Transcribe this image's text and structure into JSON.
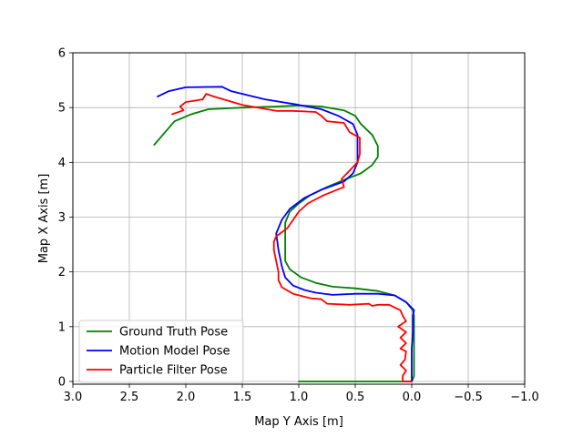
{
  "chart_data": {
    "type": "line",
    "xlabel": "Map Y Axis [m]",
    "ylabel": "Map X Axis [m]",
    "xlim": [
      3.0,
      -1.0
    ],
    "ylim": [
      -0.05,
      6.0
    ],
    "x_ticks": [
      3.0,
      2.5,
      2.0,
      1.5,
      1.0,
      0.5,
      0.0,
      -0.5,
      -1.0
    ],
    "x_tick_labels": [
      "3.0",
      "2.5",
      "2.0",
      "1.5",
      "1.0",
      "0.5",
      "0.0",
      "−0.5",
      "−1.0"
    ],
    "y_ticks": [
      0,
      1,
      2,
      3,
      4,
      5,
      6
    ],
    "y_tick_labels": [
      "0",
      "1",
      "2",
      "3",
      "4",
      "5",
      "6"
    ],
    "grid": true,
    "legend_position": "lower-left",
    "series": [
      {
        "name": "Ground Truth Pose",
        "color": "#008000",
        "points": [
          [
            1.0,
            0.0
          ],
          [
            0.0,
            0.0
          ],
          [
            -0.02,
            0.1
          ],
          [
            -0.02,
            1.2
          ],
          [
            -0.01,
            1.3
          ],
          [
            0.05,
            1.45
          ],
          [
            0.15,
            1.57
          ],
          [
            0.3,
            1.65
          ],
          [
            0.5,
            1.7
          ],
          [
            0.7,
            1.73
          ],
          [
            0.85,
            1.8
          ],
          [
            0.98,
            1.9
          ],
          [
            1.08,
            2.05
          ],
          [
            1.12,
            2.2
          ],
          [
            1.12,
            2.5
          ],
          [
            1.12,
            2.9
          ],
          [
            1.08,
            3.1
          ],
          [
            1.0,
            3.25
          ],
          [
            0.9,
            3.4
          ],
          [
            0.75,
            3.55
          ],
          [
            0.6,
            3.68
          ],
          [
            0.45,
            3.8
          ],
          [
            0.35,
            3.95
          ],
          [
            0.3,
            4.1
          ],
          [
            0.3,
            4.3
          ],
          [
            0.35,
            4.5
          ],
          [
            0.45,
            4.7
          ],
          [
            0.5,
            4.85
          ],
          [
            0.6,
            4.95
          ],
          [
            0.8,
            5.02
          ],
          [
            1.0,
            5.04
          ],
          [
            1.2,
            5.02
          ],
          [
            1.5,
            5.0
          ],
          [
            1.8,
            4.97
          ],
          [
            1.95,
            4.88
          ],
          [
            2.1,
            4.75
          ],
          [
            2.28,
            4.32
          ]
        ]
      },
      {
        "name": "Motion Model Pose",
        "color": "#0000ff",
        "points": [
          [
            0.0,
            0.0
          ],
          [
            0.0,
            0.3
          ],
          [
            0.0,
            0.6
          ],
          [
            -0.01,
            0.9
          ],
          [
            -0.01,
            1.2
          ],
          [
            -0.02,
            1.3
          ],
          [
            0.05,
            1.45
          ],
          [
            0.15,
            1.57
          ],
          [
            0.3,
            1.6
          ],
          [
            0.5,
            1.6
          ],
          [
            0.7,
            1.58
          ],
          [
            0.85,
            1.62
          ],
          [
            0.95,
            1.67
          ],
          [
            1.05,
            1.75
          ],
          [
            1.12,
            1.9
          ],
          [
            1.15,
            2.1
          ],
          [
            1.18,
            2.4
          ],
          [
            1.2,
            2.7
          ],
          [
            1.15,
            2.95
          ],
          [
            1.08,
            3.15
          ],
          [
            0.95,
            3.35
          ],
          [
            0.8,
            3.5
          ],
          [
            0.6,
            3.65
          ],
          [
            0.52,
            3.8
          ],
          [
            0.48,
            4.0
          ],
          [
            0.48,
            4.2
          ],
          [
            0.48,
            4.5
          ],
          [
            0.52,
            4.7
          ],
          [
            0.65,
            4.85
          ],
          [
            0.8,
            4.97
          ],
          [
            1.0,
            5.05
          ],
          [
            1.3,
            5.15
          ],
          [
            1.6,
            5.3
          ],
          [
            1.68,
            5.38
          ],
          [
            2.0,
            5.37
          ],
          [
            2.15,
            5.3
          ],
          [
            2.25,
            5.2
          ]
        ]
      },
      {
        "name": "Particle Filter Pose",
        "color": "#ff0000",
        "points": [
          [
            0.0,
            0.0
          ],
          [
            0.08,
            0.0
          ],
          [
            0.08,
            0.1
          ],
          [
            0.05,
            0.2
          ],
          [
            0.1,
            0.3
          ],
          [
            0.06,
            0.4
          ],
          [
            0.05,
            0.55
          ],
          [
            0.1,
            0.6
          ],
          [
            0.05,
            0.7
          ],
          [
            0.1,
            0.8
          ],
          [
            0.05,
            0.9
          ],
          [
            0.12,
            1.0
          ],
          [
            0.05,
            1.1
          ],
          [
            0.08,
            1.2
          ],
          [
            0.1,
            1.3
          ],
          [
            0.2,
            1.4
          ],
          [
            0.3,
            1.4
          ],
          [
            0.35,
            1.38
          ],
          [
            0.38,
            1.42
          ],
          [
            0.55,
            1.4
          ],
          [
            0.75,
            1.42
          ],
          [
            0.8,
            1.5
          ],
          [
            0.9,
            1.52
          ],
          [
            1.05,
            1.6
          ],
          [
            1.15,
            1.72
          ],
          [
            1.18,
            1.85
          ],
          [
            1.18,
            2.0
          ],
          [
            1.2,
            2.2
          ],
          [
            1.22,
            2.4
          ],
          [
            1.22,
            2.55
          ],
          [
            1.2,
            2.65
          ],
          [
            1.1,
            2.8
          ],
          [
            1.0,
            3.1
          ],
          [
            0.92,
            3.25
          ],
          [
            0.78,
            3.4
          ],
          [
            0.6,
            3.55
          ],
          [
            0.62,
            3.7
          ],
          [
            0.55,
            3.85
          ],
          [
            0.48,
            4.0
          ],
          [
            0.46,
            4.15
          ],
          [
            0.46,
            4.3
          ],
          [
            0.46,
            4.45
          ],
          [
            0.55,
            4.55
          ],
          [
            0.6,
            4.72
          ],
          [
            0.75,
            4.75
          ],
          [
            0.8,
            4.85
          ],
          [
            0.85,
            4.92
          ],
          [
            1.05,
            4.94
          ],
          [
            1.2,
            4.94
          ],
          [
            1.5,
            5.05
          ],
          [
            1.75,
            5.2
          ],
          [
            1.82,
            5.25
          ],
          [
            1.85,
            5.15
          ],
          [
            2.0,
            5.1
          ],
          [
            2.05,
            5.02
          ],
          [
            2.02,
            4.95
          ],
          [
            2.12,
            4.88
          ]
        ]
      }
    ]
  }
}
